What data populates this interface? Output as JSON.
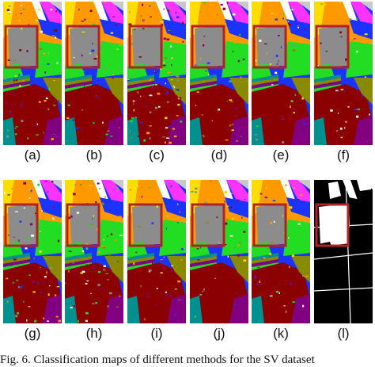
{
  "figure": {
    "panels": [
      {
        "label": "(a)",
        "variant": 0
      },
      {
        "label": "(b)",
        "variant": 1
      },
      {
        "label": "(c)",
        "variant": 2
      },
      {
        "label": "(d)",
        "variant": 3
      },
      {
        "label": "(e)",
        "variant": 4
      },
      {
        "label": "(f)",
        "variant": 5
      },
      {
        "label": "(g)",
        "variant": 6
      },
      {
        "label": "(h)",
        "variant": 7
      },
      {
        "label": "(i)",
        "variant": 8
      },
      {
        "label": "(j)",
        "variant": 9
      },
      {
        "label": "(k)",
        "variant": 10
      },
      {
        "label": "(l)",
        "variant": 11
      }
    ],
    "caption": "Fig. 6.    Classification maps of different methods for the SV dataset"
  },
  "colors": {
    "orange": "#ff9900",
    "yellow": "#ffdd00",
    "magenta": "#ff33ff",
    "white": "#ffffff",
    "lightgray": "#c8c8c8",
    "blue": "#1a33ff",
    "green": "#22dd22",
    "darkred": "#8b0000",
    "olive": "#8a8a00",
    "teal": "#009090",
    "purple": "#800080",
    "gray": "#8c8c8c",
    "box": "#b22222",
    "cyan": "#00ffff",
    "black": "#000000"
  }
}
